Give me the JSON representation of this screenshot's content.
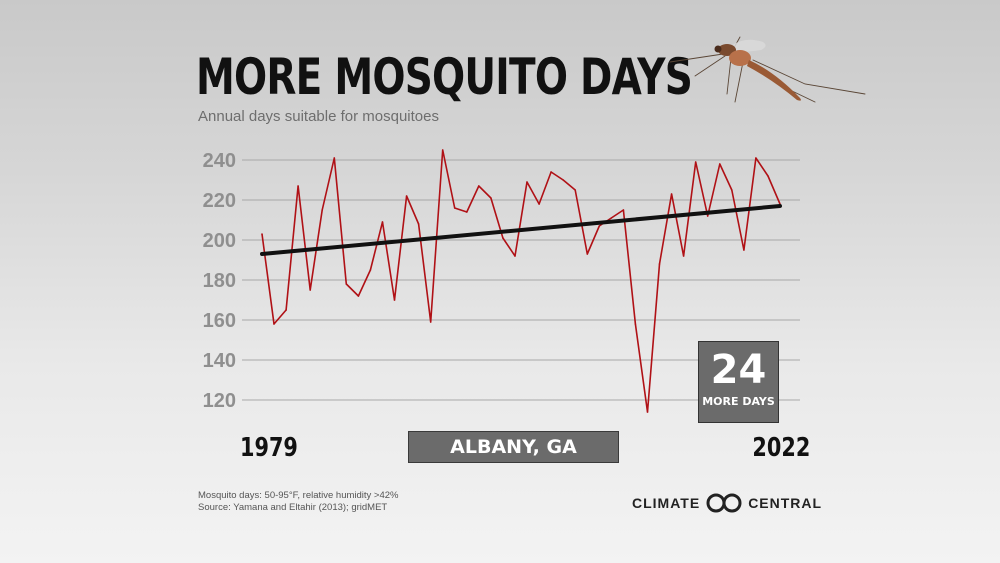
{
  "title": "MORE MOSQUITO DAYS",
  "subtitle": "Annual days suitable for mosquitoes",
  "location": "ALBANY, GA",
  "badge": {
    "value": "24",
    "label": "MORE DAYS"
  },
  "footnote": {
    "line1": "Mosquito days: 50-95°F, relative humidity >42%",
    "line2": "Source: Yamana and Eltahir (2013); gridMET"
  },
  "brand": {
    "left": "CLIMATE",
    "right": "CENTRAL"
  },
  "icons": [
    "mosquito-illustration",
    "climate-central-logo-icon"
  ],
  "colors": {
    "series": "#b01116",
    "trend": "#111111",
    "box": "#6b6b6b",
    "tick": "#8f8f8f"
  },
  "chart_data": {
    "type": "line",
    "start_label": "1979",
    "end_label": "2022",
    "yticks": [
      120,
      140,
      160,
      180,
      200,
      220,
      240
    ],
    "ylim": [
      105,
      250
    ],
    "xlim": [
      1979,
      2022
    ],
    "grid": true,
    "series": [
      {
        "x": [
          1979,
          1980,
          1981,
          1982,
          1983,
          1984,
          1985,
          1986,
          1987,
          1988,
          1989,
          1990,
          1991,
          1992,
          1993,
          1994,
          1995,
          1996,
          1997,
          1998,
          1999,
          2000,
          2001,
          2002,
          2003,
          2004,
          2005,
          2006,
          2007,
          2008,
          2009,
          2010,
          2011,
          2012,
          2013,
          2014,
          2015,
          2016,
          2017,
          2018,
          2019,
          2020,
          2021,
          2022
        ],
        "values": [
          203,
          158,
          165,
          227,
          175,
          215,
          241,
          178,
          172,
          185,
          209,
          170,
          222,
          208,
          159,
          245,
          216,
          214,
          227,
          221,
          201,
          192,
          229,
          218,
          234,
          230,
          225,
          193,
          207,
          211,
          215,
          158,
          114,
          188,
          223,
          192,
          239,
          212,
          238,
          225,
          195,
          241,
          232,
          218
        ]
      }
    ],
    "trend": {
      "start": 193,
      "end": 217
    }
  }
}
